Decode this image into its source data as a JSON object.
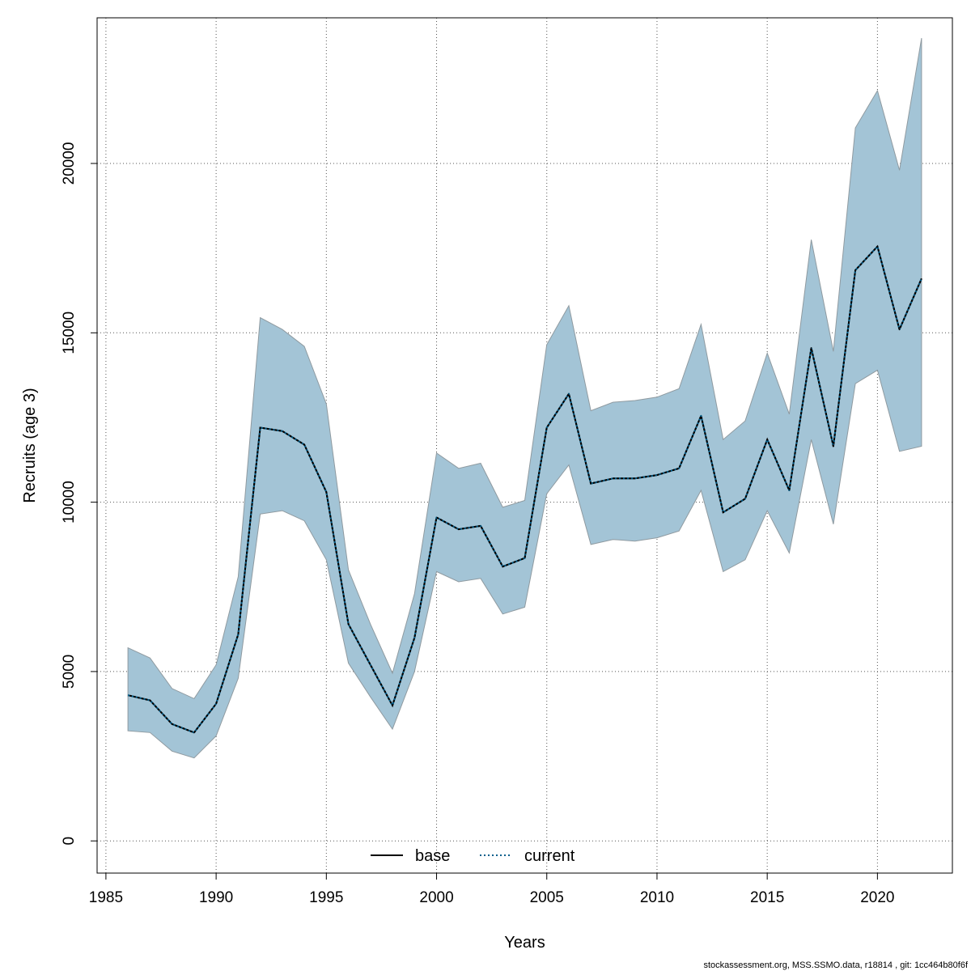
{
  "chart_data": {
    "type": "area",
    "xlabel": "Years",
    "ylabel": "Recruits (age 3)",
    "xlim": [
      1984.6,
      2023.4
    ],
    "ylim": [
      -950,
      24300
    ],
    "x_ticks": [
      1985,
      1990,
      1995,
      2000,
      2005,
      2010,
      2015,
      2020
    ],
    "y_ticks": [
      0,
      5000,
      10000,
      15000,
      20000
    ],
    "grid": true,
    "legend_position": "bottom",
    "legend": [
      {
        "label": "base",
        "style": "solid",
        "color": "#000000"
      },
      {
        "label": "current",
        "style": "dotted",
        "color": "#005f8c"
      }
    ],
    "x": [
      1986,
      1987,
      1988,
      1989,
      1990,
      1991,
      1992,
      1993,
      1994,
      1995,
      1996,
      1997,
      1998,
      1999,
      2000,
      2001,
      2002,
      2003,
      2004,
      2005,
      2006,
      2007,
      2008,
      2009,
      2010,
      2011,
      2012,
      2013,
      2014,
      2015,
      2016,
      2017,
      2018,
      2019,
      2020,
      2021,
      2022
    ],
    "series": [
      {
        "name": "base",
        "values": [
          4300,
          4150,
          3450,
          3200,
          4050,
          6100,
          12200,
          12100,
          11700,
          10300,
          6400,
          5200,
          4000,
          6000,
          9550,
          9200,
          9300,
          8100,
          8350,
          12200,
          13200,
          10550,
          10700,
          10700,
          10800,
          11000,
          12550,
          9700,
          10100,
          11850,
          10350,
          14550,
          11650,
          16850,
          17550,
          15100,
          16600
        ]
      },
      {
        "name": "current",
        "values": [
          4300,
          4150,
          3450,
          3200,
          4050,
          6100,
          12200,
          12100,
          11700,
          10300,
          6400,
          5200,
          4000,
          6000,
          9550,
          9200,
          9300,
          8100,
          8350,
          12200,
          13200,
          10550,
          10700,
          10700,
          10800,
          11000,
          12550,
          9700,
          10100,
          11850,
          10350,
          14550,
          11650,
          16850,
          17550,
          15100,
          16600
        ]
      }
    ],
    "band_upper": [
      5700,
      5400,
      4500,
      4200,
      5200,
      7800,
      15450,
      15100,
      14600,
      12900,
      8000,
      6400,
      4950,
      7300,
      11450,
      11000,
      11150,
      9850,
      10050,
      14650,
      15800,
      12700,
      12950,
      13000,
      13100,
      13350,
      15250,
      11850,
      12400,
      14400,
      12600,
      17750,
      14450,
      21050,
      22150,
      19800,
      23700
    ],
    "band_lower": [
      3250,
      3200,
      2650,
      2450,
      3100,
      4800,
      9650,
      9750,
      9450,
      8300,
      5250,
      4250,
      3300,
      5000,
      7950,
      7650,
      7750,
      6700,
      6900,
      10250,
      11100,
      8750,
      8900,
      8850,
      8950,
      9150,
      10350,
      7950,
      8300,
      9750,
      8500,
      11850,
      9350,
      13500,
      13900,
      11500,
      11650
    ],
    "band_color": "#a3c4d6",
    "band_edge_color": "#8f9aa0"
  },
  "footer": "stockassessment.org, MSS.SSMO.data, r18814 , git: 1cc464b80f6f"
}
